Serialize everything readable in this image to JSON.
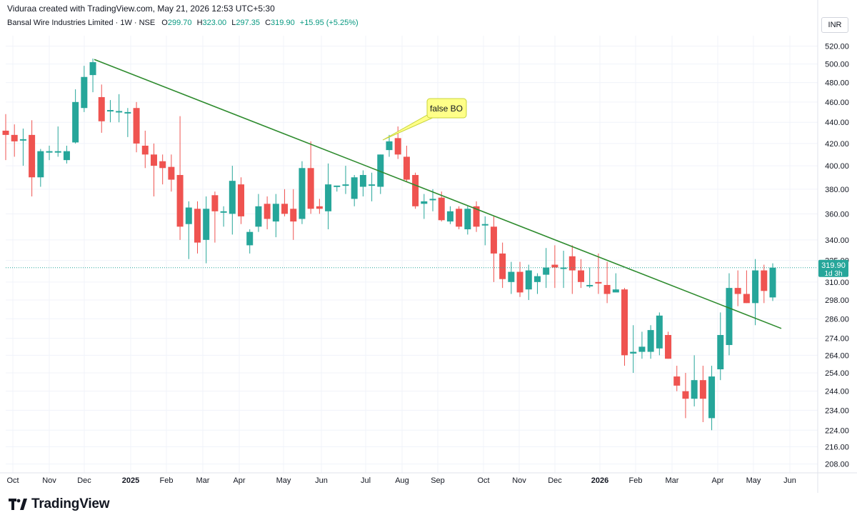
{
  "header": {
    "credit": "Viduraa created with TradingView.com, May 21, 2026 12:53 UTC+5:30"
  },
  "legend": {
    "symbol": "Bansal Wire Industries Limited · 1W · NSE",
    "o_label": "O",
    "o_value": "299.70",
    "h_label": "H",
    "h_value": "323.00",
    "l_label": "L",
    "l_value": "297.35",
    "c_label": "C",
    "c_value": "319.90",
    "change": "+15.95 (+5.25%)"
  },
  "currency": "INR",
  "brand": {
    "name": "TradingView"
  },
  "colors": {
    "up": "#26a69a",
    "down": "#ef5350",
    "trendline": "#2e8b2e",
    "callout_fill": "#ffff88",
    "price_tag": "#26a69a"
  },
  "chart_data": {
    "type": "candlestick",
    "timeframe": "1W",
    "x_ticks": [
      "Oct",
      "Nov",
      "Dec",
      "2025",
      "Feb",
      "Mar",
      "Apr",
      "May",
      "Jun",
      "Jul",
      "Aug",
      "Sep",
      "Oct",
      "Nov",
      "Dec",
      "2026",
      "Feb",
      "Mar",
      "Apr",
      "May",
      "Jun"
    ],
    "y_ticks": [
      208,
      216,
      224,
      234,
      244,
      254,
      264,
      274,
      286,
      298,
      310,
      325,
      340,
      360,
      380,
      400,
      420,
      440,
      460,
      480,
      500,
      520
    ],
    "ylim": [
      204,
      532
    ],
    "y_scale": "log",
    "candles": [
      {
        "o": 432,
        "h": 448,
        "l": 405,
        "c": 428
      },
      {
        "o": 428,
        "h": 438,
        "l": 408,
        "c": 422
      },
      {
        "o": 424,
        "h": 434,
        "l": 400,
        "c": 424
      },
      {
        "o": 428,
        "h": 442,
        "l": 374,
        "c": 390
      },
      {
        "o": 390,
        "h": 415,
        "l": 382,
        "c": 413
      },
      {
        "o": 412,
        "h": 418,
        "l": 405,
        "c": 413
      },
      {
        "o": 413,
        "h": 436,
        "l": 408,
        "c": 413
      },
      {
        "o": 405,
        "h": 418,
        "l": 402,
        "c": 413
      },
      {
        "o": 421,
        "h": 473,
        "l": 420,
        "c": 460
      },
      {
        "o": 454,
        "h": 498,
        "l": 450,
        "c": 486
      },
      {
        "o": 488,
        "h": 506,
        "l": 470,
        "c": 502
      },
      {
        "o": 465,
        "h": 478,
        "l": 430,
        "c": 441
      },
      {
        "o": 452,
        "h": 462,
        "l": 440,
        "c": 452
      },
      {
        "o": 451,
        "h": 468,
        "l": 440,
        "c": 451
      },
      {
        "o": 450,
        "h": 454,
        "l": 426,
        "c": 450
      },
      {
        "o": 454,
        "h": 460,
        "l": 412,
        "c": 420
      },
      {
        "o": 418,
        "h": 432,
        "l": 398,
        "c": 410
      },
      {
        "o": 410,
        "h": 420,
        "l": 374,
        "c": 400
      },
      {
        "o": 404,
        "h": 410,
        "l": 384,
        "c": 398
      },
      {
        "o": 399,
        "h": 410,
        "l": 378,
        "c": 388
      },
      {
        "o": 392,
        "h": 446,
        "l": 340,
        "c": 350
      },
      {
        "o": 352,
        "h": 370,
        "l": 326,
        "c": 365
      },
      {
        "o": 364,
        "h": 370,
        "l": 330,
        "c": 338
      },
      {
        "o": 340,
        "h": 374,
        "l": 323,
        "c": 364
      },
      {
        "o": 375,
        "h": 378,
        "l": 338,
        "c": 362
      },
      {
        "o": 362,
        "h": 366,
        "l": 350,
        "c": 362
      },
      {
        "o": 360,
        "h": 400,
        "l": 344,
        "c": 387
      },
      {
        "o": 384,
        "h": 390,
        "l": 352,
        "c": 358
      },
      {
        "o": 336,
        "h": 348,
        "l": 330,
        "c": 346
      },
      {
        "o": 350,
        "h": 376,
        "l": 346,
        "c": 366
      },
      {
        "o": 368,
        "h": 374,
        "l": 348,
        "c": 356
      },
      {
        "o": 354,
        "h": 376,
        "l": 342,
        "c": 368
      },
      {
        "o": 368,
        "h": 380,
        "l": 358,
        "c": 360
      },
      {
        "o": 364,
        "h": 380,
        "l": 340,
        "c": 354
      },
      {
        "o": 356,
        "h": 404,
        "l": 352,
        "c": 398
      },
      {
        "o": 398,
        "h": 422,
        "l": 360,
        "c": 364
      },
      {
        "o": 366,
        "h": 372,
        "l": 360,
        "c": 364
      },
      {
        "o": 362,
        "h": 402,
        "l": 348,
        "c": 384
      },
      {
        "o": 383,
        "h": 382,
        "l": 378,
        "c": 383
      },
      {
        "o": 384,
        "h": 400,
        "l": 376,
        "c": 384
      },
      {
        "o": 372,
        "h": 392,
        "l": 366,
        "c": 390
      },
      {
        "o": 382,
        "h": 396,
        "l": 374,
        "c": 392
      },
      {
        "o": 384,
        "h": 394,
        "l": 370,
        "c": 384
      },
      {
        "o": 382,
        "h": 410,
        "l": 376,
        "c": 410
      },
      {
        "o": 414,
        "h": 428,
        "l": 408,
        "c": 422
      },
      {
        "o": 425,
        "h": 436,
        "l": 406,
        "c": 410
      },
      {
        "o": 408,
        "h": 418,
        "l": 386,
        "c": 388
      },
      {
        "o": 392,
        "h": 394,
        "l": 364,
        "c": 366
      },
      {
        "o": 368,
        "h": 376,
        "l": 356,
        "c": 370
      },
      {
        "o": 372,
        "h": 380,
        "l": 362,
        "c": 372
      },
      {
        "o": 373,
        "h": 378,
        "l": 354,
        "c": 355
      },
      {
        "o": 354,
        "h": 366,
        "l": 352,
        "c": 362
      },
      {
        "o": 364,
        "h": 366,
        "l": 348,
        "c": 350
      },
      {
        "o": 348,
        "h": 366,
        "l": 344,
        "c": 364
      },
      {
        "o": 366,
        "h": 370,
        "l": 346,
        "c": 350
      },
      {
        "o": 352,
        "h": 358,
        "l": 336,
        "c": 352
      },
      {
        "o": 350,
        "h": 358,
        "l": 310,
        "c": 330
      },
      {
        "o": 330,
        "h": 338,
        "l": 306,
        "c": 312
      },
      {
        "o": 310,
        "h": 324,
        "l": 302,
        "c": 317
      },
      {
        "o": 317,
        "h": 324,
        "l": 300,
        "c": 303
      },
      {
        "o": 305,
        "h": 322,
        "l": 298,
        "c": 318
      },
      {
        "o": 310,
        "h": 316,
        "l": 302,
        "c": 314
      },
      {
        "o": 315,
        "h": 334,
        "l": 306,
        "c": 320
      },
      {
        "o": 322,
        "h": 336,
        "l": 306,
        "c": 320
      },
      {
        "o": 320,
        "h": 332,
        "l": 306,
        "c": 320
      },
      {
        "o": 328,
        "h": 336,
        "l": 302,
        "c": 318
      },
      {
        "o": 318,
        "h": 326,
        "l": 306,
        "c": 310
      },
      {
        "o": 308,
        "h": 320,
        "l": 306,
        "c": 308
      },
      {
        "o": 310,
        "h": 330,
        "l": 302,
        "c": 309
      },
      {
        "o": 308,
        "h": 324,
        "l": 296,
        "c": 302
      },
      {
        "o": 303,
        "h": 316,
        "l": 304,
        "c": 305
      },
      {
        "o": 305,
        "h": 306,
        "l": 258,
        "c": 264
      },
      {
        "o": 265,
        "h": 282,
        "l": 254,
        "c": 266
      },
      {
        "o": 266,
        "h": 278,
        "l": 262,
        "c": 269
      },
      {
        "o": 266,
        "h": 282,
        "l": 262,
        "c": 279
      },
      {
        "o": 268,
        "h": 290,
        "l": 264,
        "c": 288
      },
      {
        "o": 276,
        "h": 278,
        "l": 262,
        "c": 262
      },
      {
        "o": 252,
        "h": 258,
        "l": 244,
        "c": 247
      },
      {
        "o": 244,
        "h": 254,
        "l": 230,
        "c": 240
      },
      {
        "o": 240,
        "h": 264,
        "l": 236,
        "c": 250
      },
      {
        "o": 250,
        "h": 258,
        "l": 228,
        "c": 240
      },
      {
        "o": 230,
        "h": 258,
        "l": 224,
        "c": 252
      },
      {
        "o": 256,
        "h": 290,
        "l": 250,
        "c": 276
      },
      {
        "o": 270,
        "h": 316,
        "l": 264,
        "c": 306
      },
      {
        "o": 306,
        "h": 318,
        "l": 294,
        "c": 302
      },
      {
        "o": 302,
        "h": 318,
        "l": 296,
        "c": 296
      },
      {
        "o": 296,
        "h": 326,
        "l": 282,
        "c": 318
      },
      {
        "o": 318,
        "h": 322,
        "l": 296,
        "c": 304
      },
      {
        "o": 299.7,
        "h": 323.0,
        "l": 297.35,
        "c": 319.9
      }
    ],
    "trendline": {
      "from": {
        "x": "Dec 2024",
        "y": 505
      },
      "to": {
        "x": "May 2026",
        "y": 280
      }
    },
    "annotation": "false BO",
    "last_price": "319.90",
    "countdown": "1d 3h"
  }
}
